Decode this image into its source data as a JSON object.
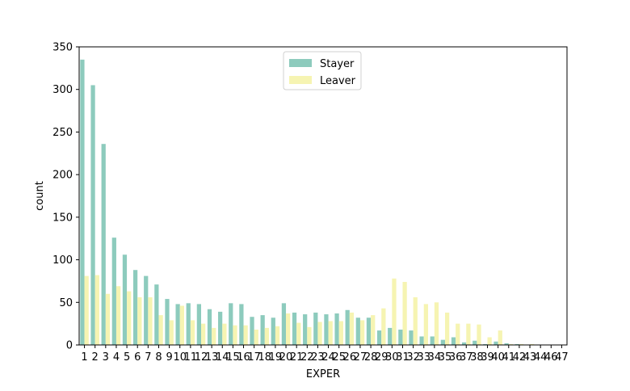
{
  "chart_data": {
    "type": "bar",
    "xlabel": "EXPER",
    "ylabel": "count",
    "ylim": [
      0,
      350
    ],
    "yticks": [
      0,
      50,
      100,
      150,
      200,
      250,
      300,
      350
    ],
    "legend_position": "top-center",
    "categories": [
      "1",
      "2",
      "3",
      "4",
      "5",
      "6",
      "7",
      "8",
      "9",
      "10",
      "11",
      "12",
      "13",
      "14",
      "15",
      "16",
      "17",
      "18",
      "19",
      "20",
      "21",
      "22",
      "23",
      "24",
      "25",
      "26",
      "27",
      "28",
      "29",
      "30",
      "31",
      "32",
      "33",
      "34",
      "35",
      "36",
      "37",
      "38",
      "39",
      "40",
      "41",
      "42",
      "43",
      "44",
      "46",
      "47"
    ],
    "series": [
      {
        "name": "Stayer",
        "color": "#8dcbbd",
        "values": [
          335,
          305,
          236,
          126,
          106,
          88,
          81,
          71,
          54,
          48,
          49,
          48,
          42,
          39,
          49,
          48,
          33,
          35,
          32,
          49,
          38,
          36,
          38,
          36,
          37,
          41,
          32,
          32,
          17,
          20,
          18,
          17,
          10,
          10,
          6,
          9,
          3,
          5,
          1,
          4,
          2,
          1,
          0,
          0,
          0,
          0
        ]
      },
      {
        "name": "Leaver",
        "color": "#f6f4b2",
        "values": [
          81,
          82,
          60,
          69,
          63,
          56,
          56,
          35,
          29,
          46,
          29,
          25,
          20,
          25,
          23,
          23,
          18,
          20,
          22,
          37,
          26,
          21,
          27,
          28,
          28,
          38,
          29,
          35,
          43,
          78,
          74,
          56,
          48,
          50,
          38,
          25,
          25,
          24,
          9,
          17,
          1,
          1,
          1,
          0,
          0,
          0
        ]
      }
    ]
  }
}
